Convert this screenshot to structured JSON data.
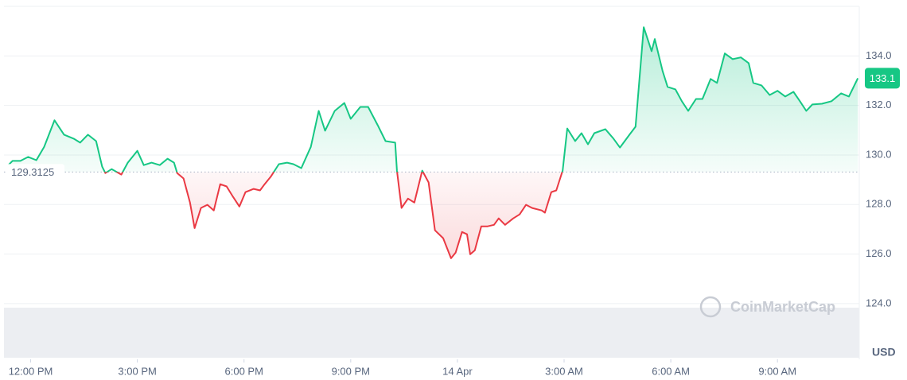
{
  "chart_data": {
    "type": "line",
    "x": [
      -0.67,
      -0.51,
      -0.29,
      -0.07,
      0.16,
      0.38,
      0.67,
      0.94,
      1.21,
      1.39,
      1.61,
      1.84,
      2.01,
      2.1,
      2.28,
      2.55,
      2.73,
      3.0,
      3.18,
      3.4,
      3.63,
      3.85,
      4.03,
      4.12,
      4.3,
      4.48,
      4.61,
      4.79,
      4.97,
      5.15,
      5.33,
      5.51,
      5.69,
      5.87,
      6.04,
      6.27,
      6.45,
      6.58,
      6.76,
      6.98,
      7.21,
      7.39,
      7.61,
      7.88,
      8.1,
      8.28,
      8.55,
      8.82,
      9.0,
      9.27,
      9.49,
      9.76,
      9.98,
      10.25,
      10.3,
      10.43,
      10.61,
      10.79,
      11.01,
      11.19,
      11.37,
      11.6,
      11.82,
      11.95,
      12.13,
      12.27,
      12.36,
      12.49,
      12.67,
      12.85,
      13.03,
      13.16,
      13.34,
      13.57,
      13.75,
      13.93,
      14.1,
      14.37,
      14.46,
      14.64,
      14.78,
      14.96,
      15.09,
      15.31,
      15.49,
      15.67,
      15.85,
      16.16,
      16.39,
      16.57,
      16.84,
      17.01,
      17.24,
      17.46,
      17.55,
      17.77,
      17.91,
      18.13,
      18.31,
      18.49,
      18.71,
      18.89,
      19.12,
      19.3,
      19.52,
      19.74,
      19.97,
      20.19,
      20.32,
      20.55,
      20.78,
      21.0,
      21.22,
      21.45,
      21.63,
      21.81,
      21.98,
      22.25,
      22.52,
      22.79,
      23.01,
      23.26
    ],
    "values": [
      129.53,
      129.76,
      129.76,
      129.92,
      129.79,
      130.33,
      131.4,
      130.82,
      130.66,
      130.5,
      130.82,
      130.56,
      129.53,
      129.27,
      129.43,
      129.21,
      129.69,
      130.17,
      129.59,
      129.69,
      129.59,
      129.85,
      129.69,
      129.27,
      129.05,
      128.08,
      127.05,
      127.86,
      127.99,
      127.76,
      128.82,
      128.73,
      128.31,
      127.92,
      128.5,
      128.63,
      128.57,
      128.82,
      129.14,
      129.63,
      129.69,
      129.63,
      129.47,
      130.33,
      131.78,
      130.98,
      131.78,
      132.1,
      131.46,
      131.94,
      131.94,
      131.2,
      130.56,
      130.5,
      129.37,
      127.86,
      128.24,
      128.08,
      129.37,
      128.89,
      126.96,
      126.64,
      125.83,
      126.06,
      126.89,
      126.8,
      125.99,
      126.15,
      127.12,
      127.12,
      127.18,
      127.44,
      127.18,
      127.44,
      127.6,
      127.99,
      127.86,
      127.76,
      127.67,
      128.5,
      128.57,
      129.37,
      131.07,
      130.56,
      130.88,
      130.43,
      130.88,
      131.04,
      130.66,
      130.3,
      130.82,
      131.14,
      135.16,
      134.19,
      134.68,
      133.39,
      132.75,
      132.65,
      132.17,
      131.78,
      132.26,
      132.26,
      133.07,
      132.91,
      134.1,
      133.87,
      133.94,
      133.71,
      132.91,
      132.81,
      132.42,
      132.59,
      132.36,
      132.55,
      132.17,
      131.78,
      132.04,
      132.07,
      132.17,
      132.49,
      132.36,
      133.1
    ],
    "baseline": 129.3125,
    "current_price": 133.1,
    "up_color": "#16c784",
    "down_color": "#ea3943",
    "xlim": [
      -0.75,
      23.3
    ],
    "ylim": [
      121.75,
      136.0
    ],
    "xticks": [
      {
        "value": 0,
        "label": "12:00 PM"
      },
      {
        "value": 3,
        "label": "3:00 PM"
      },
      {
        "value": 6,
        "label": "6:00 PM"
      },
      {
        "value": 9,
        "label": "9:00 PM"
      },
      {
        "value": 12,
        "label": "14 Apr"
      },
      {
        "value": 15,
        "label": "3:00 AM"
      },
      {
        "value": 18,
        "label": "6:00 AM"
      },
      {
        "value": 21,
        "label": "9:00 AM"
      }
    ],
    "yticks": [
      {
        "value": 124,
        "label": "124.0"
      },
      {
        "value": 126,
        "label": "126.0"
      },
      {
        "value": 128,
        "label": "128.0"
      },
      {
        "value": 130,
        "label": "130.0"
      },
      {
        "value": 132,
        "label": "132.0"
      },
      {
        "value": 134,
        "label": "134.0"
      }
    ],
    "y_unit": "USD",
    "watermark": "CoinMarketCap",
    "grid": true
  }
}
